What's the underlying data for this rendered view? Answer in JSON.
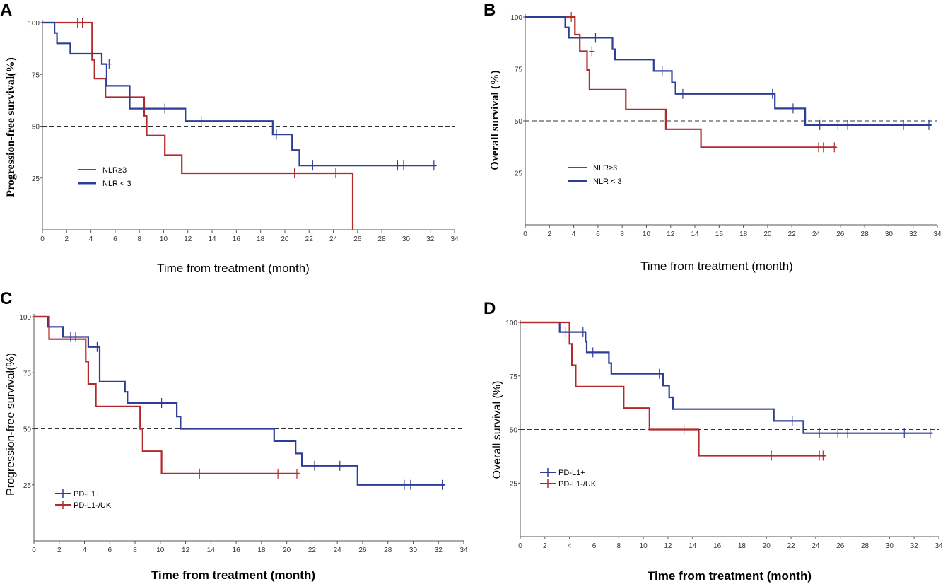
{
  "colors": {
    "red": "#b22a2e",
    "blue": "#2e3d98",
    "axis": "#555555"
  },
  "chart_data": [
    {
      "panel": "A",
      "type": "line",
      "subtype": "kaplan-meier",
      "ylabel": "Progression-free survival(%)",
      "xlabel": "Time from treatment  (month)",
      "xlim": [
        0,
        34
      ],
      "ylim": [
        0,
        100
      ],
      "xticks": [
        0,
        2,
        4,
        6,
        8,
        10,
        12,
        14,
        16,
        18,
        20,
        22,
        24,
        26,
        28,
        30,
        32,
        34
      ],
      "yticks": [
        25,
        50,
        75,
        100
      ],
      "reference_line": 50,
      "legend": [
        "NLR≥3",
        "NLR < 3"
      ],
      "series": [
        {
          "name": "NLR≥3",
          "color": "red",
          "steps": [
            [
              0,
              100
            ],
            [
              4.1,
              100
            ],
            [
              4.1,
              82
            ],
            [
              4.3,
              82
            ],
            [
              4.3,
              73
            ],
            [
              5.2,
              73
            ],
            [
              5.2,
              64
            ],
            [
              8.4,
              64
            ],
            [
              8.4,
              55
            ],
            [
              8.6,
              55
            ],
            [
              8.6,
              45.5
            ],
            [
              10.1,
              45.5
            ],
            [
              10.1,
              36
            ],
            [
              11.5,
              36
            ],
            [
              11.5,
              27.3
            ],
            [
              25.6,
              27.3
            ],
            [
              25.6,
              0
            ]
          ],
          "censors": [
            [
              2.9,
              100
            ],
            [
              3.3,
              100
            ],
            [
              20.8,
              27.3
            ],
            [
              24.2,
              27.3
            ]
          ]
        },
        {
          "name": "NLR < 3",
          "color": "blue",
          "steps": [
            [
              0,
              100
            ],
            [
              1,
              100
            ],
            [
              1,
              95
            ],
            [
              1.2,
              95
            ],
            [
              1.2,
              90
            ],
            [
              2.3,
              90
            ],
            [
              2.3,
              85
            ],
            [
              4.9,
              85
            ],
            [
              4.9,
              80
            ],
            [
              5.3,
              80
            ],
            [
              5.3,
              69.5
            ],
            [
              7.2,
              69.5
            ],
            [
              7.2,
              58.5
            ],
            [
              11.8,
              58.5
            ],
            [
              11.8,
              52.5
            ],
            [
              19,
              52.5
            ],
            [
              19,
              46
            ],
            [
              20.6,
              46
            ],
            [
              20.6,
              38.5
            ],
            [
              21.2,
              38.5
            ],
            [
              21.2,
              31
            ],
            [
              32.5,
              31
            ]
          ],
          "censors": [
            [
              5.5,
              80
            ],
            [
              10.1,
              58.5
            ],
            [
              13.1,
              52.5
            ],
            [
              19.3,
              46
            ],
            [
              22.3,
              31
            ],
            [
              29.3,
              31
            ],
            [
              29.8,
              31
            ],
            [
              32.3,
              31
            ]
          ]
        }
      ]
    },
    {
      "panel": "B",
      "type": "line",
      "subtype": "kaplan-meier",
      "ylabel": "Overall survival (%)",
      "xlabel": "Time from treatment  (month)",
      "xlim": [
        0,
        34
      ],
      "ylim": [
        0,
        100
      ],
      "xticks": [
        0,
        2,
        4,
        6,
        8,
        10,
        12,
        14,
        16,
        18,
        20,
        22,
        24,
        26,
        28,
        30,
        32,
        34
      ],
      "yticks": [
        25,
        50,
        75,
        100
      ],
      "reference_line": 50,
      "legend": [
        "NLR≥3",
        "NLR < 3"
      ],
      "series": [
        {
          "name": "NLR≥3",
          "color": "red",
          "steps": [
            [
              0,
              100
            ],
            [
              4.1,
              100
            ],
            [
              4.1,
              91.5
            ],
            [
              4.5,
              91.5
            ],
            [
              4.5,
              83.5
            ],
            [
              5.1,
              83.5
            ],
            [
              5.1,
              74.5
            ],
            [
              5.3,
              74.5
            ],
            [
              5.3,
              65
            ],
            [
              8.3,
              65
            ],
            [
              8.3,
              55.5
            ],
            [
              11.6,
              55.5
            ],
            [
              11.6,
              46
            ],
            [
              14.5,
              46
            ],
            [
              14.5,
              37.3
            ],
            [
              25.6,
              37.3
            ]
          ],
          "censors": [
            [
              3.8,
              100
            ],
            [
              5.5,
              83.5
            ],
            [
              24.2,
              37.3
            ],
            [
              24.6,
              37.3
            ],
            [
              25.5,
              37.3
            ]
          ]
        },
        {
          "name": "NLR < 3",
          "color": "blue",
          "steps": [
            [
              0,
              100
            ],
            [
              3.3,
              100
            ],
            [
              3.3,
              95
            ],
            [
              3.6,
              95
            ],
            [
              3.6,
              90
            ],
            [
              7.2,
              90
            ],
            [
              7.2,
              84.5
            ],
            [
              7.4,
              84.5
            ],
            [
              7.4,
              79.5
            ],
            [
              10.6,
              79.5
            ],
            [
              10.6,
              74
            ],
            [
              12.1,
              74
            ],
            [
              12.1,
              68.5
            ],
            [
              12.4,
              68.5
            ],
            [
              12.4,
              63
            ],
            [
              20.6,
              63
            ],
            [
              20.6,
              56
            ],
            [
              23.1,
              56
            ],
            [
              23.1,
              48
            ],
            [
              33.5,
              48
            ]
          ],
          "censors": [
            [
              5.8,
              90
            ],
            [
              11.3,
              74
            ],
            [
              13,
              63
            ],
            [
              20.4,
              63
            ],
            [
              22.1,
              56
            ],
            [
              24.3,
              48
            ],
            [
              25.8,
              48
            ],
            [
              26.6,
              48
            ],
            [
              31.2,
              48
            ],
            [
              33.3,
              48
            ]
          ]
        }
      ]
    },
    {
      "panel": "C",
      "type": "line",
      "subtype": "kaplan-meier",
      "ylabel": "Progression-free survival(%)",
      "xlabel": "Time from treatment  (month)",
      "xlim": [
        0,
        34
      ],
      "ylim": [
        0,
        100
      ],
      "xticks": [
        0,
        2,
        4,
        6,
        8,
        10,
        12,
        14,
        16,
        18,
        20,
        22,
        24,
        26,
        28,
        30,
        32,
        34
      ],
      "yticks": [
        25,
        50,
        75,
        100
      ],
      "reference_line": 50,
      "legend": [
        "PD-L1+",
        "PD-L1-/UK"
      ],
      "series": [
        {
          "name": "PD-L1+",
          "color": "blue",
          "steps": [
            [
              0,
              100
            ],
            [
              1.1,
              100
            ],
            [
              1.1,
              95.5
            ],
            [
              2.3,
              95.5
            ],
            [
              2.3,
              91
            ],
            [
              4.3,
              91
            ],
            [
              4.3,
              86.5
            ],
            [
              5.2,
              86.5
            ],
            [
              5.2,
              71
            ],
            [
              7.2,
              71
            ],
            [
              7.2,
              66.5
            ],
            [
              7.4,
              66.5
            ],
            [
              7.4,
              61.5
            ],
            [
              11.3,
              61.5
            ],
            [
              11.3,
              55.5
            ],
            [
              11.6,
              55.5
            ],
            [
              11.6,
              50
            ],
            [
              19,
              50
            ],
            [
              19,
              44.5
            ],
            [
              20.7,
              44.5
            ],
            [
              20.7,
              39
            ],
            [
              21.2,
              39
            ],
            [
              21.2,
              33.5
            ],
            [
              25.6,
              33.5
            ],
            [
              25.6,
              25
            ],
            [
              32.5,
              25
            ]
          ],
          "censors": [
            [
              2.9,
              91
            ],
            [
              3.3,
              91
            ],
            [
              5,
              86.5
            ],
            [
              10.1,
              61.5
            ],
            [
              22.2,
              33.5
            ],
            [
              24.2,
              33.5
            ],
            [
              29.3,
              25
            ],
            [
              29.8,
              25
            ],
            [
              32.3,
              25
            ]
          ]
        },
        {
          "name": "PD-L1-/UK",
          "color": "red",
          "steps": [
            [
              0,
              100
            ],
            [
              1.2,
              100
            ],
            [
              1.2,
              90
            ],
            [
              4.1,
              90
            ],
            [
              4.1,
              80
            ],
            [
              4.3,
              80
            ],
            [
              4.3,
              70
            ],
            [
              4.9,
              70
            ],
            [
              4.9,
              60
            ],
            [
              8.4,
              60
            ],
            [
              8.4,
              50
            ],
            [
              8.6,
              50
            ],
            [
              8.6,
              40
            ],
            [
              10.1,
              40
            ],
            [
              10.1,
              30
            ],
            [
              21,
              30
            ]
          ],
          "censors": [
            [
              13.1,
              30
            ],
            [
              19.3,
              30
            ],
            [
              20.8,
              30
            ]
          ]
        }
      ]
    },
    {
      "panel": "D",
      "type": "line",
      "subtype": "kaplan-meier",
      "ylabel": "Overall survival (%)",
      "xlabel": "Time from treatment  (month)",
      "xlim": [
        0,
        34
      ],
      "ylim": [
        0,
        100
      ],
      "xticks": [
        0,
        2,
        4,
        6,
        8,
        10,
        12,
        14,
        16,
        18,
        20,
        22,
        24,
        26,
        28,
        30,
        32,
        34
      ],
      "yticks": [
        25,
        50,
        75,
        100
      ],
      "reference_line": 50,
      "legend": [
        "PD-L1+",
        "PD-L1-/UK"
      ],
      "series": [
        {
          "name": "PD-L1+",
          "color": "blue",
          "steps": [
            [
              0,
              100
            ],
            [
              3.2,
              100
            ],
            [
              3.2,
              95.5
            ],
            [
              5.3,
              95.5
            ],
            [
              5.3,
              91
            ],
            [
              5.4,
              91
            ],
            [
              5.4,
              86
            ],
            [
              7.2,
              86
            ],
            [
              7.2,
              81
            ],
            [
              7.4,
              81
            ],
            [
              7.4,
              76
            ],
            [
              11.6,
              76
            ],
            [
              11.6,
              70.5
            ],
            [
              12.1,
              70.5
            ],
            [
              12.1,
              65
            ],
            [
              12.4,
              65
            ],
            [
              12.4,
              59.5
            ],
            [
              20.6,
              59.5
            ],
            [
              20.6,
              54
            ],
            [
              23,
              54
            ],
            [
              23,
              48.3
            ],
            [
              33.5,
              48.3
            ]
          ],
          "censors": [
            [
              3.7,
              95.5
            ],
            [
              5.1,
              95.5
            ],
            [
              5.9,
              86
            ],
            [
              11.3,
              76
            ],
            [
              22.1,
              54
            ],
            [
              24.3,
              48.3
            ],
            [
              25.8,
              48.3
            ],
            [
              26.6,
              48.3
            ],
            [
              31.2,
              48.3
            ],
            [
              33.3,
              48.3
            ]
          ]
        },
        {
          "name": "PD-L1-/UK",
          "color": "red",
          "steps": [
            [
              0,
              100
            ],
            [
              4,
              100
            ],
            [
              4,
              90
            ],
            [
              4.2,
              90
            ],
            [
              4.2,
              80
            ],
            [
              4.5,
              80
            ],
            [
              4.5,
              70
            ],
            [
              8.4,
              70
            ],
            [
              8.4,
              60
            ],
            [
              10.5,
              60
            ],
            [
              10.5,
              50
            ],
            [
              14.5,
              50
            ],
            [
              14.5,
              37.8
            ],
            [
              24.8,
              37.8
            ]
          ],
          "censors": [
            [
              13.3,
              50
            ],
            [
              20.4,
              37.8
            ],
            [
              24.3,
              37.8
            ],
            [
              24.6,
              37.8
            ]
          ]
        }
      ]
    }
  ]
}
